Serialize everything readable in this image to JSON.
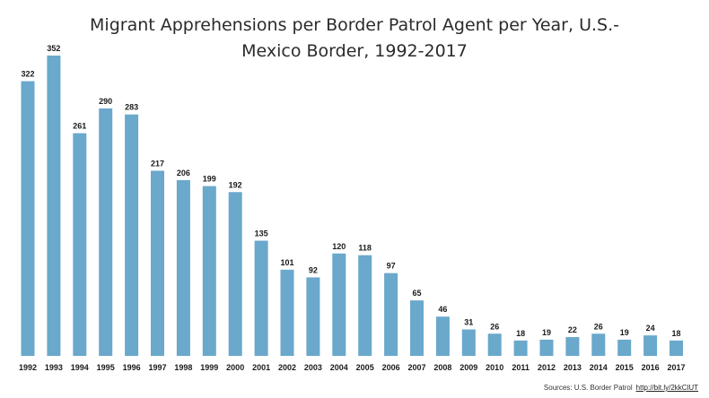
{
  "chart_data": {
    "type": "bar",
    "title_line1": "Migrant Apprehensions per Border Patrol Agent per Year, U.S.-",
    "title_line2": "Mexico Border, 1992-2017",
    "xlabel": "",
    "ylabel": "",
    "ylim": [
      0,
      370
    ],
    "grid": false,
    "legend": "none",
    "bar_color": "#6aa8cc",
    "categories": [
      "1992",
      "1993",
      "1994",
      "1995",
      "1996",
      "1997",
      "1998",
      "1999",
      "2000",
      "2001",
      "2002",
      "2003",
      "2004",
      "2005",
      "2006",
      "2007",
      "2008",
      "2009",
      "2010",
      "2011",
      "2012",
      "2013",
      "2014",
      "2015",
      "2016",
      "2017"
    ],
    "values": [
      322,
      352,
      261,
      290,
      283,
      217,
      206,
      199,
      192,
      135,
      101,
      92,
      120,
      118,
      97,
      65,
      46,
      31,
      26,
      18,
      19,
      22,
      26,
      19,
      24,
      18
    ]
  },
  "source": {
    "text": "Sources: U.S. Border Patrol",
    "link_text": "http://bit.ly/2kkClUT"
  }
}
